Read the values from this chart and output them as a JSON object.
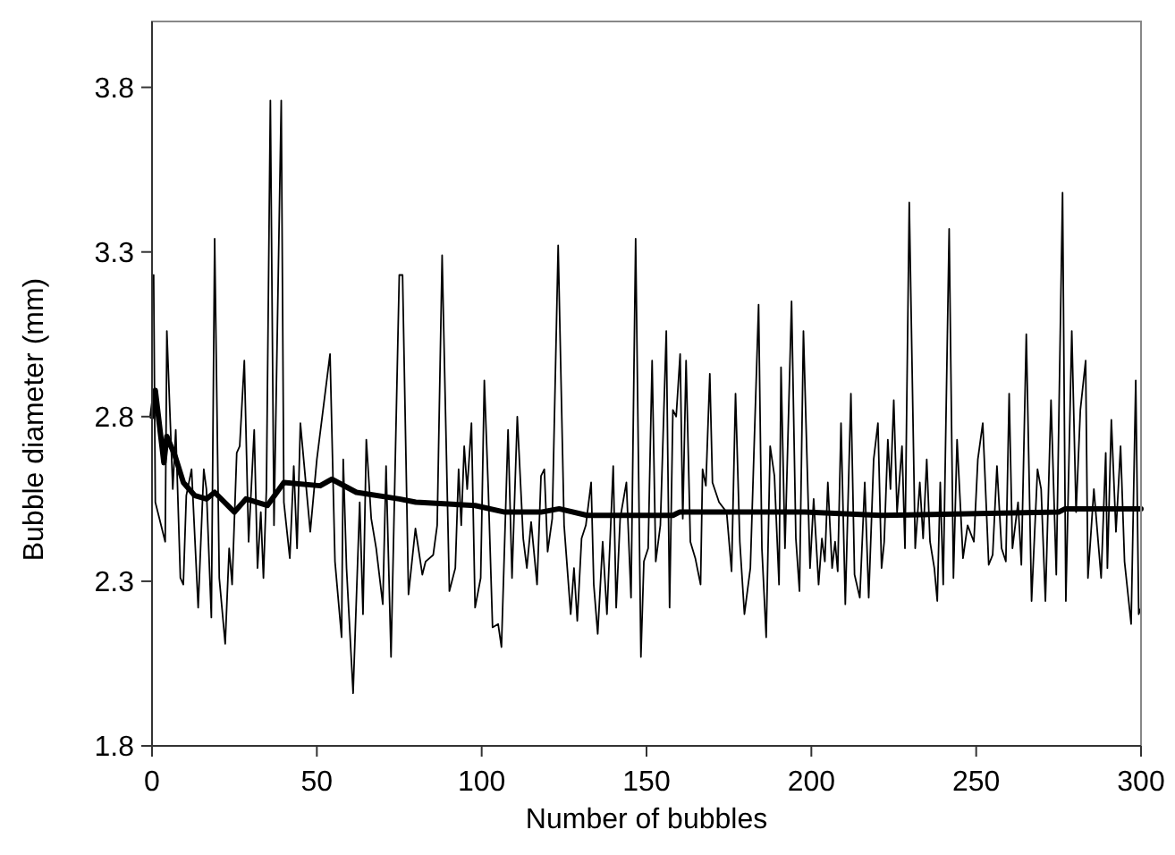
{
  "chart_data": {
    "type": "line",
    "xlabel": "Number of bubbles",
    "ylabel": "Bubble diameter (mm)",
    "xlim": [
      0,
      300
    ],
    "xticks": [
      0,
      50,
      100,
      150,
      200,
      250,
      300
    ],
    "ylim": [
      1.8,
      4.0
    ],
    "yticks": [
      1.8,
      2.3,
      2.8,
      3.3,
      3.8
    ],
    "grid": false,
    "marker": "none",
    "line_style": "solid",
    "series": [
      {
        "color": "#000000",
        "x": [
          0.5,
          1,
          4,
          4.5,
          6.3,
          7.2,
          8.6,
          9.5,
          10.4,
          12,
          14,
          15.7,
          16.5,
          18,
          19,
          20.4,
          22.2,
          23.4,
          24.3,
          25.7,
          26.6,
          28,
          29.3,
          31,
          32,
          33,
          33.8,
          34.7,
          35.9,
          37,
          39.2,
          40,
          41.8,
          43,
          44,
          45,
          48,
          50,
          54,
          55.5,
          57.5,
          58,
          59,
          61,
          63,
          64,
          65,
          66.5,
          68,
          70,
          71,
          72.5,
          75,
          76,
          77.8,
          79.9,
          82,
          83,
          85.3,
          86.5,
          88,
          90.2,
          92,
          93,
          93.8,
          94.7,
          95.6,
          96.9,
          98,
          99.7,
          100.8,
          102,
          103.3,
          105,
          106,
          108,
          109.2,
          110.8,
          112.6,
          113.7,
          115,
          116.8,
          118,
          119,
          120,
          121.4,
          123.2,
          125,
          127,
          128,
          129,
          130.3,
          131.6,
          133.2,
          134,
          135.2,
          136.7,
          138,
          139.9,
          140.8,
          142,
          143.9,
          145.3,
          146.7,
          148.3,
          149.2,
          150.5,
          151.7,
          152.8,
          154.2,
          156,
          157,
          158,
          159,
          160.2,
          161,
          162,
          163.3,
          164.8,
          166.4,
          167,
          168,
          169.2,
          170,
          172,
          174.3,
          175.8,
          177,
          178.3,
          179.7,
          181.5,
          182.8,
          184,
          185,
          186.3,
          187.5,
          188.8,
          190.2,
          190.8,
          192,
          194,
          195.3,
          196.4,
          197.6,
          199.6,
          200.7,
          202.2,
          203.2,
          204.1,
          205,
          206.3,
          207.2,
          208,
          209,
          210.3,
          212,
          213.1,
          214.7,
          216.2,
          217.4,
          218.9,
          220.2,
          221.3,
          222.1,
          223.2,
          224,
          225,
          226,
          227.5,
          228.4,
          229.7,
          231.5,
          232.9,
          233.9,
          235,
          236,
          237.3,
          238.2,
          239.1,
          240,
          241.8,
          243.1,
          244.2,
          246,
          247.4,
          249.3,
          250.5,
          252,
          253.8,
          255,
          256.3,
          257.7,
          259,
          260,
          261,
          262.7,
          263.7,
          265.2,
          266.8,
          268.6,
          269.7,
          271,
          272.7,
          274.3,
          276.2,
          277.2,
          279,
          280.3,
          281.6,
          283.2,
          283.9,
          285.7,
          287.9,
          289.3,
          289.8,
          291,
          292.4,
          293.8,
          295,
          297,
          298.4,
          299.3,
          300
        ],
        "values": [
          3.23,
          2.54,
          2.42,
          3.06,
          2.58,
          2.76,
          2.31,
          2.29,
          2.56,
          2.64,
          2.22,
          2.64,
          2.58,
          2.19,
          3.34,
          2.31,
          2.11,
          2.4,
          2.29,
          2.69,
          2.71,
          2.97,
          2.42,
          2.76,
          2.34,
          2.51,
          2.31,
          2.58,
          3.76,
          2.47,
          3.76,
          2.54,
          2.37,
          2.65,
          2.4,
          2.78,
          2.45,
          2.67,
          2.99,
          2.36,
          2.13,
          2.67,
          2.34,
          1.96,
          2.54,
          2.2,
          2.73,
          2.49,
          2.4,
          2.23,
          2.65,
          2.07,
          3.23,
          3.23,
          2.26,
          2.46,
          2.32,
          2.36,
          2.38,
          2.47,
          3.29,
          2.27,
          2.34,
          2.64,
          2.47,
          2.71,
          2.58,
          2.78,
          2.22,
          2.31,
          2.91,
          2.58,
          2.16,
          2.17,
          2.1,
          2.76,
          2.31,
          2.8,
          2.43,
          2.34,
          2.48,
          2.29,
          2.62,
          2.64,
          2.39,
          2.49,
          3.32,
          2.47,
          2.2,
          2.34,
          2.18,
          2.43,
          2.47,
          2.6,
          2.29,
          2.14,
          2.42,
          2.2,
          2.65,
          2.22,
          2.49,
          2.6,
          2.25,
          3.34,
          2.07,
          2.36,
          2.4,
          2.97,
          2.36,
          2.47,
          3.06,
          2.22,
          2.82,
          2.8,
          2.99,
          2.49,
          2.97,
          2.42,
          2.37,
          2.29,
          2.64,
          2.59,
          2.93,
          2.6,
          2.54,
          2.51,
          2.33,
          2.87,
          2.42,
          2.2,
          2.34,
          2.76,
          3.14,
          2.4,
          2.13,
          2.71,
          2.62,
          2.29,
          2.95,
          2.4,
          3.15,
          2.43,
          2.27,
          3.06,
          2.34,
          2.55,
          2.29,
          2.43,
          2.36,
          2.6,
          2.34,
          2.42,
          2.33,
          2.78,
          2.23,
          2.87,
          2.32,
          2.25,
          2.6,
          2.25,
          2.67,
          2.78,
          2.34,
          2.42,
          2.73,
          2.58,
          2.85,
          2.51,
          2.71,
          2.4,
          3.45,
          2.4,
          2.6,
          2.43,
          2.67,
          2.42,
          2.34,
          2.24,
          2.6,
          2.29,
          3.37,
          2.31,
          2.73,
          2.37,
          2.47,
          2.42,
          2.67,
          2.78,
          2.35,
          2.38,
          2.65,
          2.4,
          2.36,
          2.87,
          2.4,
          2.54,
          2.35,
          3.05,
          2.24,
          2.64,
          2.58,
          2.24,
          2.85,
          2.32,
          3.48,
          2.24,
          3.06,
          2.51,
          2.82,
          2.97,
          2.31,
          2.58,
          2.31,
          2.69,
          2.34,
          2.79,
          2.45,
          2.71,
          2.36,
          2.17,
          2.91,
          2.2,
          2.22
        ]
      },
      {
        "color": "#000000",
        "x": [
          0,
          1,
          3.6,
          4.5,
          7,
          9.5,
          13,
          16.5,
          19,
          25,
          28.5,
          35,
          40,
          51,
          54.5,
          62,
          75,
          80,
          98,
          107,
          118,
          123.5,
          132,
          148,
          158,
          160,
          198,
          221,
          275,
          277,
          300
        ],
        "values": [
          2.8,
          2.88,
          2.66,
          2.74,
          2.68,
          2.6,
          2.56,
          2.55,
          2.57,
          2.51,
          2.55,
          2.53,
          2.6,
          2.59,
          2.61,
          2.57,
          2.55,
          2.54,
          2.53,
          2.51,
          2.51,
          2.52,
          2.5,
          2.5,
          2.5,
          2.51,
          2.51,
          2.5,
          2.51,
          2.52,
          2.52
        ]
      }
    ]
  }
}
